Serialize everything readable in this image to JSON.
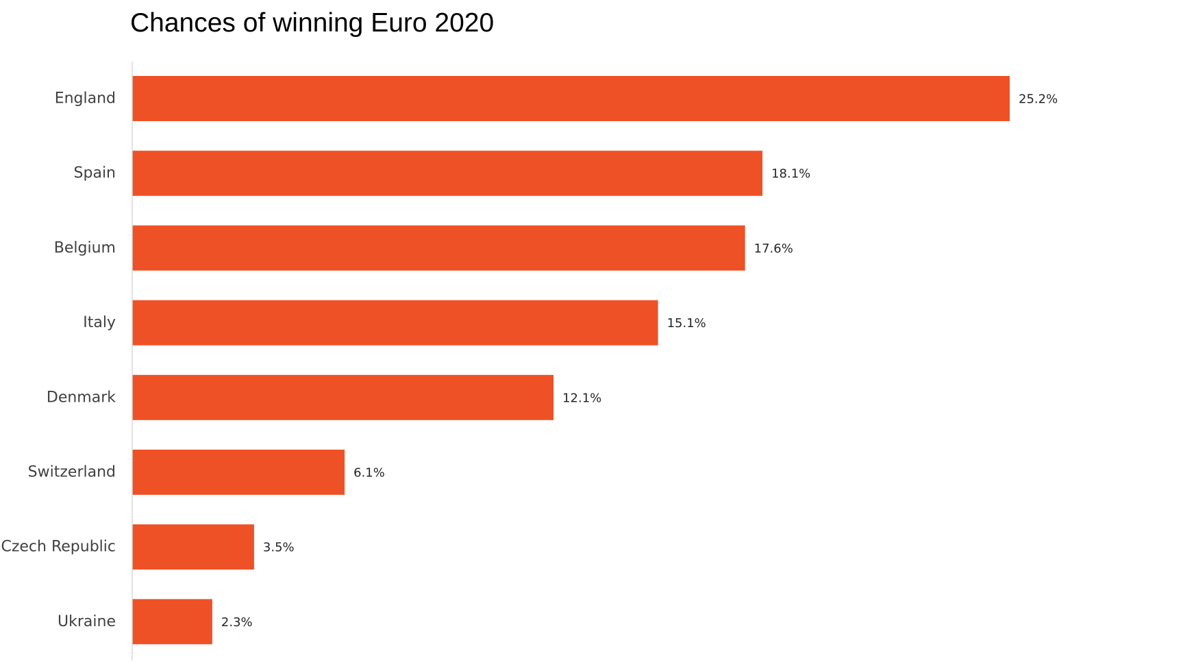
{
  "chart_data": {
    "type": "bar",
    "orientation": "horizontal",
    "title": "Chances of winning Euro 2020",
    "xlabel": "",
    "ylabel": "",
    "categories": [
      "England",
      "Spain",
      "Belgium",
      "Italy",
      "Denmark",
      "Switzerland",
      "Czech Republic",
      "Ukraine"
    ],
    "values": [
      25.2,
      18.1,
      17.6,
      15.1,
      12.1,
      6.1,
      3.5,
      2.3
    ],
    "data_labels": [
      "25.2%",
      "18.1%",
      "17.6%",
      "15.1%",
      "12.1%",
      "6.1%",
      "3.5%",
      "2.3%"
    ],
    "xlim": [
      0,
      25.2
    ],
    "grid": false,
    "legend": "none",
    "colors": {
      "bar": "#EF5126",
      "axis": "#D9D9D9"
    }
  }
}
